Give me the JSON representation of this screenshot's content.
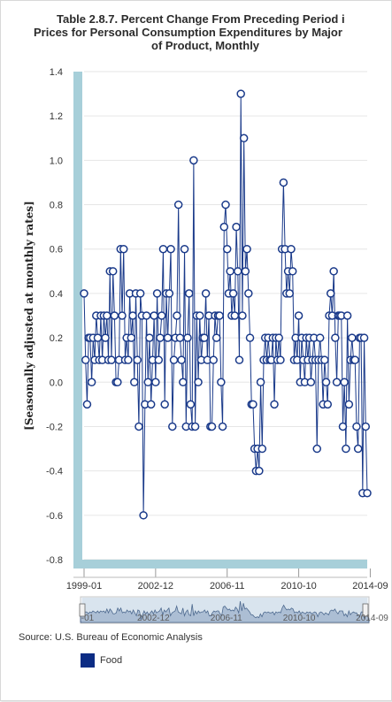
{
  "title": {
    "line1": "Table 2.8.7. Percent Change From Preceding Period i",
    "line2": "Prices for Personal Consumption Expenditures by Major",
    "line3": "of Product, Monthly"
  },
  "source_text": "Source: U.S. Bureau of Economic Analysis",
  "legend": {
    "label": "Food",
    "color": "#0c2c84"
  },
  "colors": {
    "series": "#1a3a8a",
    "marker_fill": "#ffffff",
    "axis_band": "#a7cfd9",
    "grid": "#e6e6e6",
    "navigator_fill": "#8aa0c0"
  },
  "chart_data": {
    "type": "line",
    "title": "Table 2.8.7. Percent Change From Preceding Period i Prices for Personal Consumption Expenditures by Major of Product, Monthly",
    "xlabel": "",
    "ylabel": "[Seasonally adjusted at monthly rates]",
    "ylim": [
      -0.8,
      1.4
    ],
    "yticks": [
      -0.8,
      -0.6,
      -0.4,
      -0.2,
      0.0,
      0.2,
      0.4,
      0.6,
      0.8,
      1.0,
      1.2,
      1.4
    ],
    "ytick_labels": [
      "-0.8",
      "-0.6",
      "-0.4",
      "-0.2",
      "0.0",
      "0.2",
      "0.4",
      "0.6",
      "0.8",
      "1.0",
      "1.2",
      "1.4"
    ],
    "xticks": [
      "1999-01",
      "2002-12",
      "2006-11",
      "2010-10",
      "2014-09"
    ],
    "grid": true,
    "legend_position": "bottom-left",
    "series": [
      {
        "name": "Food",
        "start": "1999-01",
        "values": [
          0.4,
          0.1,
          -0.1,
          0.2,
          0.2,
          0.0,
          0.2,
          0.1,
          0.3,
          0.2,
          0.1,
          0.3,
          0.1,
          0.3,
          0.2,
          0.3,
          0.1,
          0.5,
          0.1,
          0.5,
          0.3,
          0.0,
          0.0,
          0.1,
          0.6,
          0.3,
          0.6,
          0.1,
          0.2,
          0.1,
          0.4,
          0.2,
          0.3,
          0.0,
          0.4,
          0.1,
          -0.2,
          0.4,
          0.3,
          -0.6,
          -0.1,
          0.3,
          0.0,
          0.2,
          -0.1,
          0.1,
          0.3,
          0.0,
          0.4,
          0.1,
          0.2,
          0.3,
          0.6,
          -0.1,
          0.4,
          0.2,
          0.4,
          0.6,
          -0.2,
          0.1,
          0.2,
          0.3,
          0.8,
          0.2,
          0.1,
          0.0,
          0.6,
          -0.2,
          0.2,
          0.4,
          -0.1,
          -0.2,
          1.0,
          -0.2,
          0.3,
          0.0,
          0.3,
          0.1,
          0.2,
          0.2,
          0.4,
          0.1,
          0.3,
          -0.2,
          -0.2,
          0.1,
          0.3,
          0.2,
          0.3,
          0.3,
          0.0,
          -0.2,
          0.7,
          0.8,
          0.6,
          0.4,
          0.5,
          0.3,
          0.4,
          0.3,
          0.7,
          0.5,
          0.1,
          1.3,
          0.3,
          1.1,
          0.5,
          0.6,
          0.4,
          0.2,
          -0.1,
          -0.1,
          -0.3,
          -0.4,
          -0.3,
          -0.4,
          0.0,
          -0.3,
          0.1,
          0.2,
          0.1,
          0.2,
          0.1,
          0.1,
          0.2,
          -0.1,
          0.2,
          0.1,
          0.2,
          0.1,
          0.6,
          0.9,
          0.6,
          0.4,
          0.5,
          0.4,
          0.6,
          0.5,
          0.1,
          0.2,
          0.1,
          0.3,
          0.0,
          0.2,
          0.1,
          0.0,
          0.2,
          0.1,
          0.2,
          0.0,
          0.1,
          0.2,
          0.1,
          -0.3,
          0.1,
          0.2,
          0.1,
          -0.1,
          0.1,
          0.0,
          -0.1,
          0.3,
          0.4,
          0.3,
          0.5,
          0.2,
          0.0,
          0.3,
          0.3,
          0.3,
          -0.2,
          0.0,
          -0.3,
          0.3,
          -0.1,
          0.1,
          0.2,
          0.1,
          0.1,
          -0.2,
          -0.3,
          0.2,
          0.2,
          -0.5,
          0.2,
          -0.2,
          -0.5
        ]
      }
    ],
    "navigator": {
      "xticks": [
        "-01",
        "2002-12",
        "2006-11",
        "2010-10",
        "2014-09"
      ]
    }
  }
}
